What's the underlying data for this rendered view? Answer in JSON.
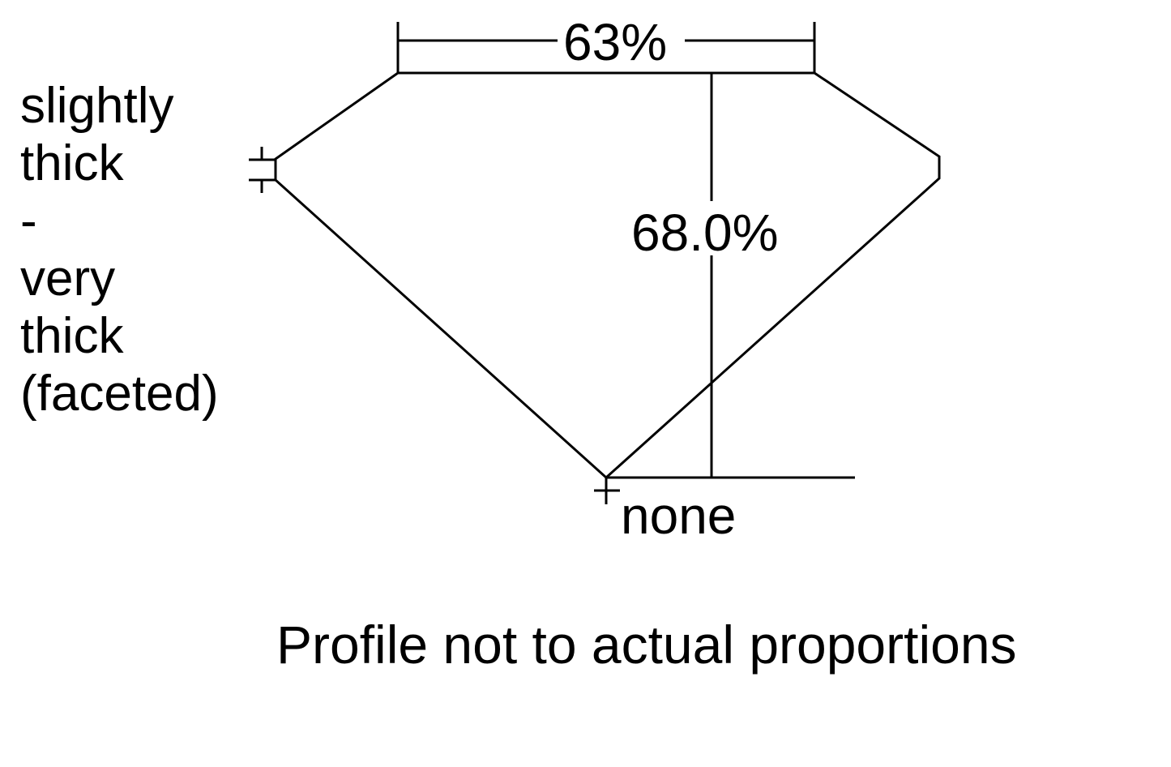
{
  "labels": {
    "table_percent": "63%",
    "depth_percent": "68.0%",
    "girdle_lines": [
      "slightly",
      "thick",
      "-",
      "very",
      "thick",
      "(faceted)"
    ],
    "culet": "none",
    "caption": "Profile not to actual proportions"
  },
  "colors": {
    "stroke": "#000000",
    "background": "#ffffff"
  }
}
